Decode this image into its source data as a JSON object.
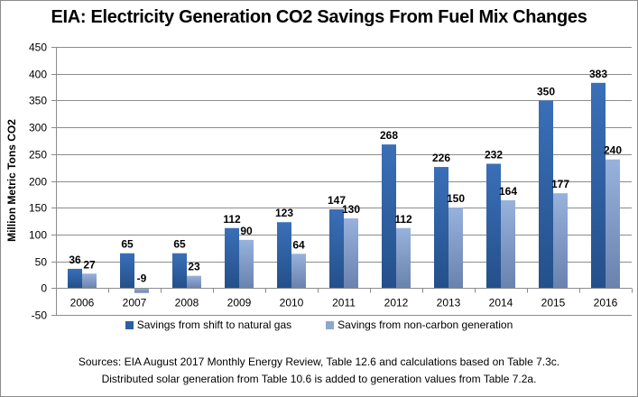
{
  "chart_data": {
    "type": "bar",
    "title": "EIA: Electricity Generation CO2 Savings From Fuel Mix Changes",
    "xlabel": "",
    "ylabel": "Million Metric Tons CO2",
    "ylim": [
      -50,
      450
    ],
    "yticks": [
      -50,
      0,
      50,
      100,
      150,
      200,
      250,
      300,
      350,
      400,
      450
    ],
    "grid": true,
    "legend_position": "bottom",
    "categories": [
      "2006",
      "2007",
      "2008",
      "2009",
      "2010",
      "2011",
      "2012",
      "2013",
      "2014",
      "2015",
      "2016"
    ],
    "series": [
      {
        "name": "Savings from shift to natural gas",
        "color": "#2e5fa0",
        "values": [
          36,
          65,
          65,
          112,
          123,
          147,
          268,
          226,
          232,
          350,
          383
        ]
      },
      {
        "name": "Savings from non-carbon generation",
        "color": "#8ea7d2",
        "values": [
          27,
          -9,
          23,
          90,
          64,
          130,
          112,
          150,
          164,
          177,
          240
        ]
      }
    ],
    "annotations": [
      "Sources: EIA August 2017 Monthly Energy Review,  Table 12.6 and calculations based on Table 7.3c.",
      "Distributed solar generation from Table 10.6 is added to generation values from Table 7.2a."
    ]
  }
}
